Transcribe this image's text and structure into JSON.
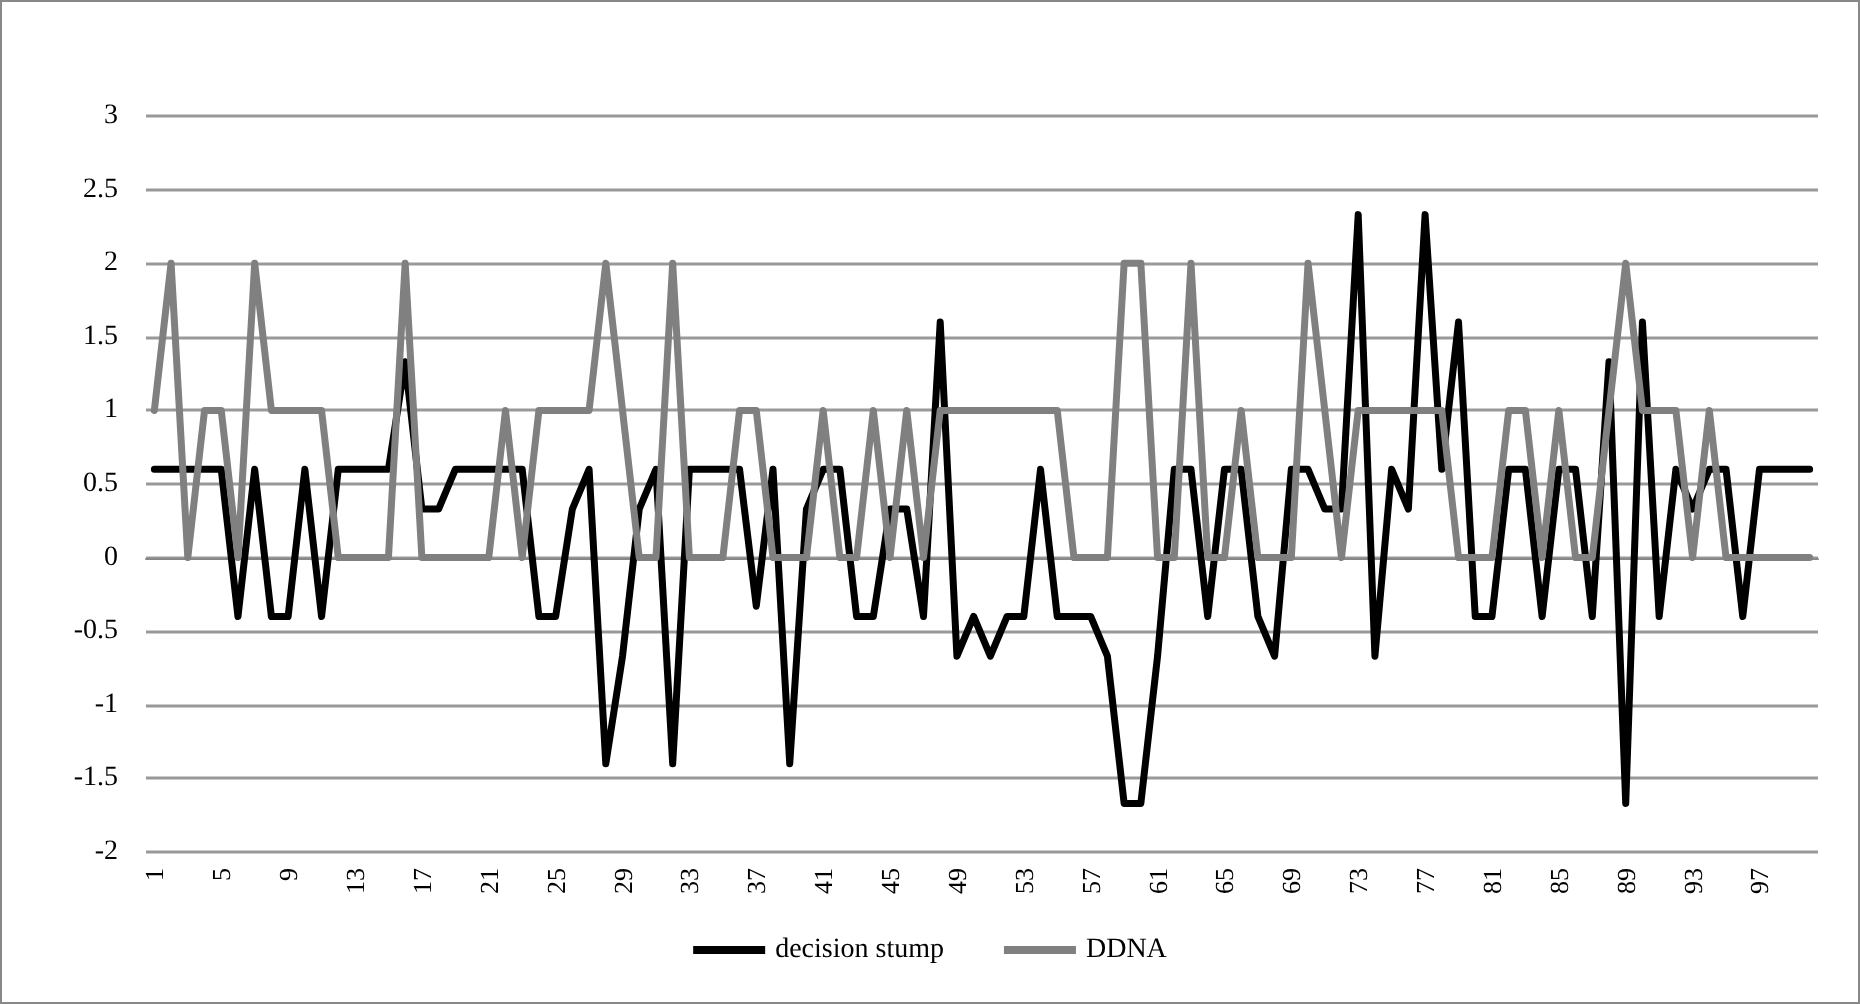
{
  "chart_data": {
    "type": "line",
    "categories": [
      "1",
      null,
      null,
      null,
      "5",
      null,
      null,
      null,
      "9",
      null,
      null,
      null,
      "13",
      null,
      null,
      null,
      "17",
      null,
      null,
      null,
      "21",
      null,
      null,
      null,
      "25",
      null,
      null,
      null,
      "29",
      null,
      null,
      null,
      "33",
      null,
      null,
      null,
      "37",
      null,
      null,
      null,
      "41",
      null,
      null,
      null,
      "45",
      null,
      null,
      null,
      "49",
      null,
      null,
      null,
      "53",
      null,
      null,
      null,
      "57",
      null,
      null,
      null,
      "61",
      null,
      null,
      null,
      "65",
      null,
      null,
      null,
      "69",
      null,
      null,
      null,
      "73",
      null,
      null,
      null,
      "77",
      null,
      null,
      null,
      "81",
      null,
      null,
      null,
      "85",
      null,
      null,
      null,
      "89",
      null,
      null,
      null,
      "93",
      null,
      null,
      null,
      "97",
      null,
      null,
      null
    ],
    "series": [
      {
        "name": "decision stump",
        "color": "#000000",
        "values": [
          0.6,
          0.6,
          0.6,
          0.6,
          0.6,
          -0.4,
          0.6,
          -0.4,
          -0.4,
          0.6,
          -0.4,
          0.6,
          0.6,
          0.6,
          0.6,
          1.33,
          0.33,
          0.33,
          0.6,
          0.6,
          0.6,
          0.6,
          0.6,
          -0.4,
          -0.4,
          0.33,
          0.6,
          -1.4,
          -0.67,
          0.33,
          0.6,
          -1.4,
          0.6,
          0.6,
          0.6,
          0.6,
          -0.33,
          0.6,
          -1.4,
          0.33,
          0.6,
          0.6,
          -0.4,
          -0.4,
          0.33,
          0.33,
          -0.4,
          1.6,
          -0.67,
          -0.4,
          -0.67,
          -0.4,
          -0.4,
          0.6,
          -0.4,
          -0.4,
          -0.4,
          -0.67,
          -1.67,
          -1.67,
          -0.67,
          0.6,
          0.6,
          -0.4,
          0.6,
          0.6,
          -0.4,
          -0.67,
          0.6,
          0.6,
          0.33,
          0.33,
          2.33,
          -0.67,
          0.6,
          0.33,
          2.33,
          0.6,
          1.6,
          -0.4,
          -0.4,
          0.6,
          0.6,
          -0.4,
          0.6,
          0.6,
          -0.4,
          1.33,
          -1.67,
          1.6,
          -0.4,
          0.6,
          0.33,
          0.6,
          0.6,
          -0.4,
          0.6,
          0.6,
          0.6,
          0.6
        ]
      },
      {
        "name": "DDNA",
        "color": "#808080",
        "values": [
          1,
          2,
          0,
          1,
          1,
          0,
          2,
          1,
          1,
          1,
          1,
          0,
          0,
          0,
          0,
          2,
          0,
          0,
          0,
          0,
          0,
          1,
          0,
          1,
          1,
          1,
          1,
          2,
          1,
          0,
          0,
          2,
          0,
          0,
          0,
          1,
          1,
          0,
          0,
          0,
          1,
          0,
          0,
          1,
          0,
          1,
          0,
          1,
          1,
          1,
          1,
          1,
          1,
          1,
          1,
          0,
          0,
          0,
          2,
          2,
          0,
          0,
          2,
          0,
          0,
          1,
          0,
          0,
          0,
          2,
          1,
          0,
          1,
          1,
          1,
          1,
          1,
          1,
          0,
          0,
          0,
          1,
          1,
          0,
          1,
          0,
          0,
          1,
          2,
          1,
          1,
          1,
          0,
          1,
          0,
          0,
          0,
          0,
          0,
          0
        ]
      }
    ],
    "ylim": [
      -2,
      3
    ],
    "yticks": [
      -2,
      -1.5,
      -1,
      -0.5,
      0,
      0.5,
      1,
      1.5,
      2,
      2.5,
      3
    ],
    "grid": "y",
    "legend": "bottom",
    "marker": "none",
    "line_style": "solid"
  }
}
